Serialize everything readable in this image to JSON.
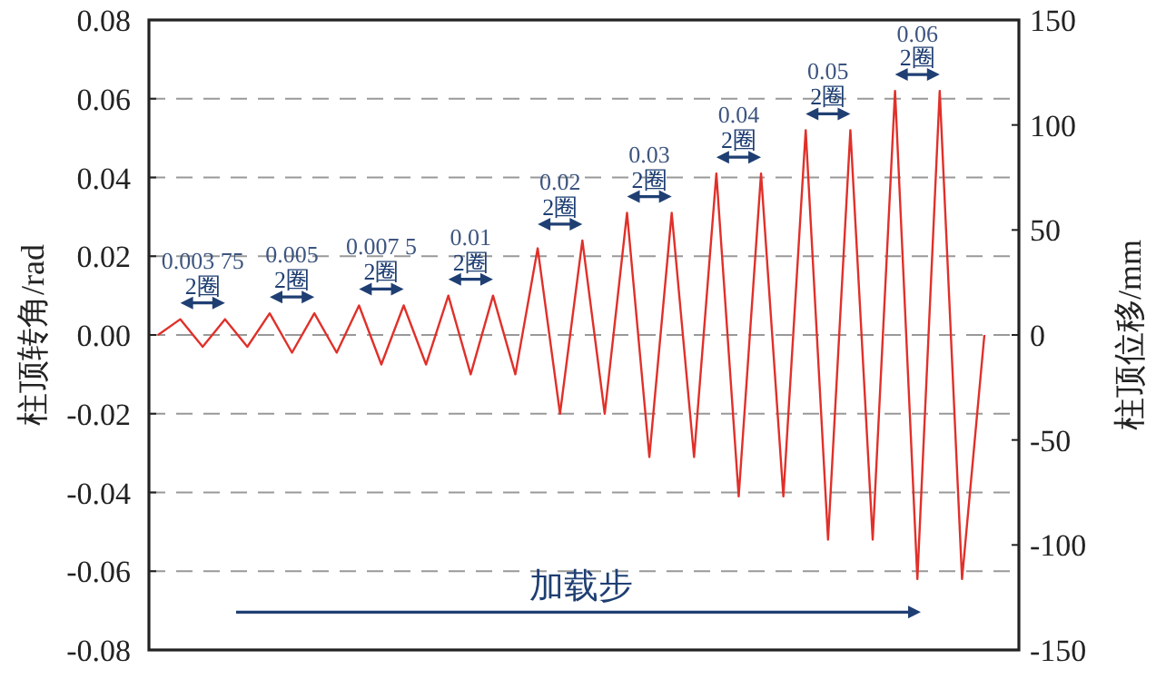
{
  "chart_data": {
    "type": "line",
    "ylabel": "柱顶转角/rad",
    "y2label": "柱顶位移/mm",
    "categories": [
      null,
      null,
      null,
      null,
      null,
      null,
      null,
      null,
      null,
      null,
      null,
      null,
      null,
      null,
      null,
      null,
      null,
      null,
      null,
      null,
      null,
      null,
      null,
      null,
      null,
      null,
      null,
      null,
      null,
      null,
      null,
      null,
      null,
      null,
      null,
      null,
      null,
      null
    ],
    "series": [
      {
        "color": "#e0302a",
        "values": [
          0,
          0.004,
          -0.003,
          0.004,
          -0.003,
          0.0055,
          -0.0045,
          0.0055,
          -0.0045,
          0.0075,
          -0.0075,
          0.0075,
          -0.0075,
          0.01,
          -0.01,
          0.01,
          -0.01,
          0.022,
          -0.02,
          0.024,
          -0.02,
          0.031,
          -0.031,
          0.031,
          -0.031,
          0.041,
          -0.041,
          0.041,
          -0.041,
          0.052,
          -0.052,
          0.052,
          -0.052,
          0.062,
          -0.062,
          0.062,
          -0.062,
          0
        ]
      }
    ],
    "ylim": [
      -0.08,
      0.08
    ],
    "yticks": [
      {
        "value": -0.08,
        "label": "-0.08"
      },
      {
        "value": -0.06,
        "label": "-0.06"
      },
      {
        "value": -0.04,
        "label": "-0.04"
      },
      {
        "value": -0.02,
        "label": "-0.02"
      },
      {
        "value": 0,
        "label": "0.00"
      },
      {
        "value": 0.02,
        "label": "0.02"
      },
      {
        "value": 0.04,
        "label": "0.04"
      },
      {
        "value": 0.06,
        "label": "0.06"
      },
      {
        "value": 0.08,
        "label": "0.08"
      }
    ],
    "y2lim": [
      -150,
      150
    ],
    "y2ticks": [
      -150,
      -100,
      -50,
      0,
      50,
      100,
      150
    ],
    "grid": "y",
    "marker": "none",
    "line_style": "solid",
    "annotations": [
      "0.003 75",
      "2圈",
      "0.005",
      "2圈",
      "0.007 5",
      "2圈",
      "0.01",
      "2圈",
      "0.02",
      "2圈",
      "0.03",
      "2圈",
      "0.04",
      "2圈",
      "0.05",
      "2圈",
      "0.06",
      "2圈",
      "加载步"
    ]
  }
}
